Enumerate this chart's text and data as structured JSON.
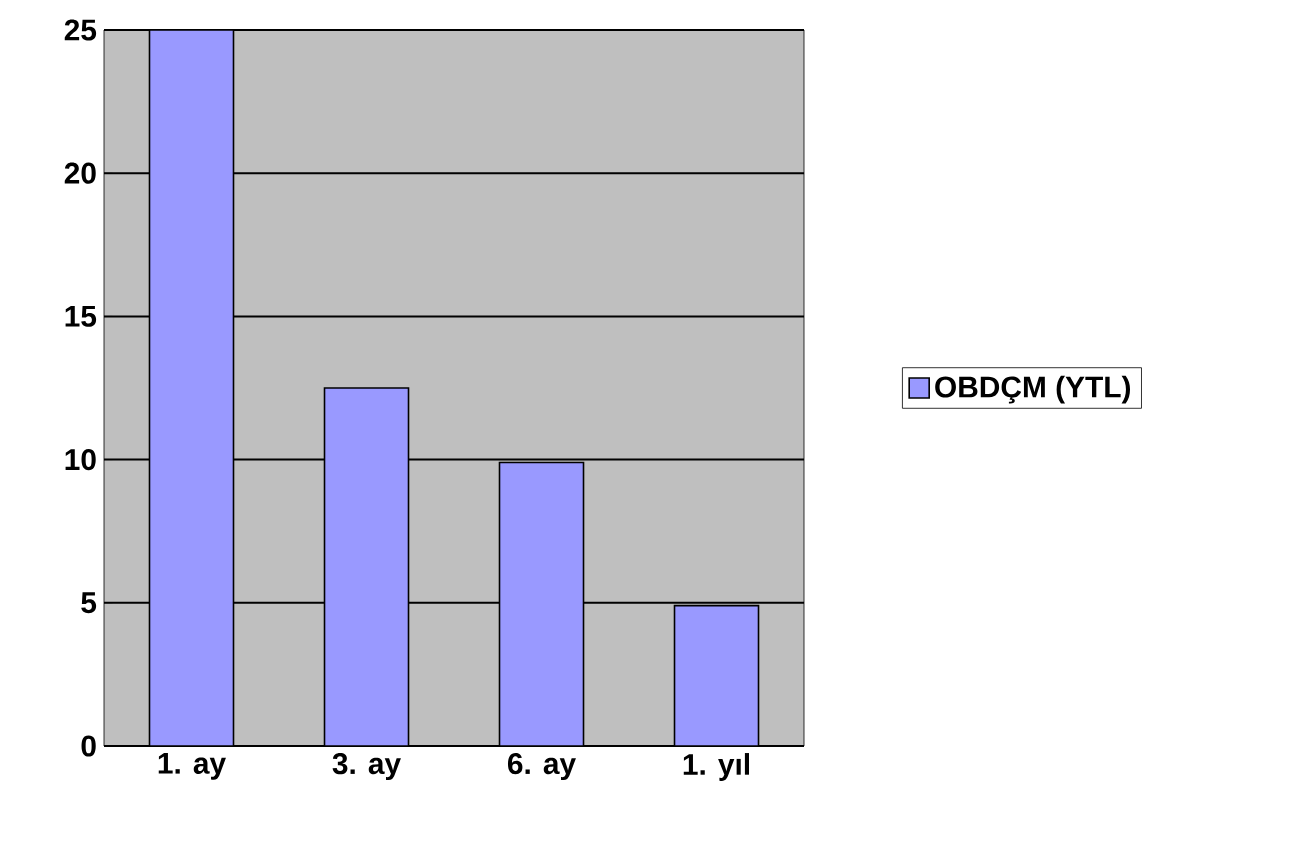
{
  "chart_data": {
    "type": "bar",
    "categories": [
      "1. ay",
      "3. ay",
      "6. ay",
      "1. yıl"
    ],
    "series": [
      {
        "name": "OBDÇM (YTL)",
        "color": "#9999ff",
        "values": [
          25,
          12.5,
          9.9,
          4.9
        ]
      }
    ],
    "ylim": [
      0,
      25
    ],
    "yticks": [
      0,
      5,
      10,
      15,
      20,
      25
    ],
    "grid": "y",
    "legend": "right"
  }
}
